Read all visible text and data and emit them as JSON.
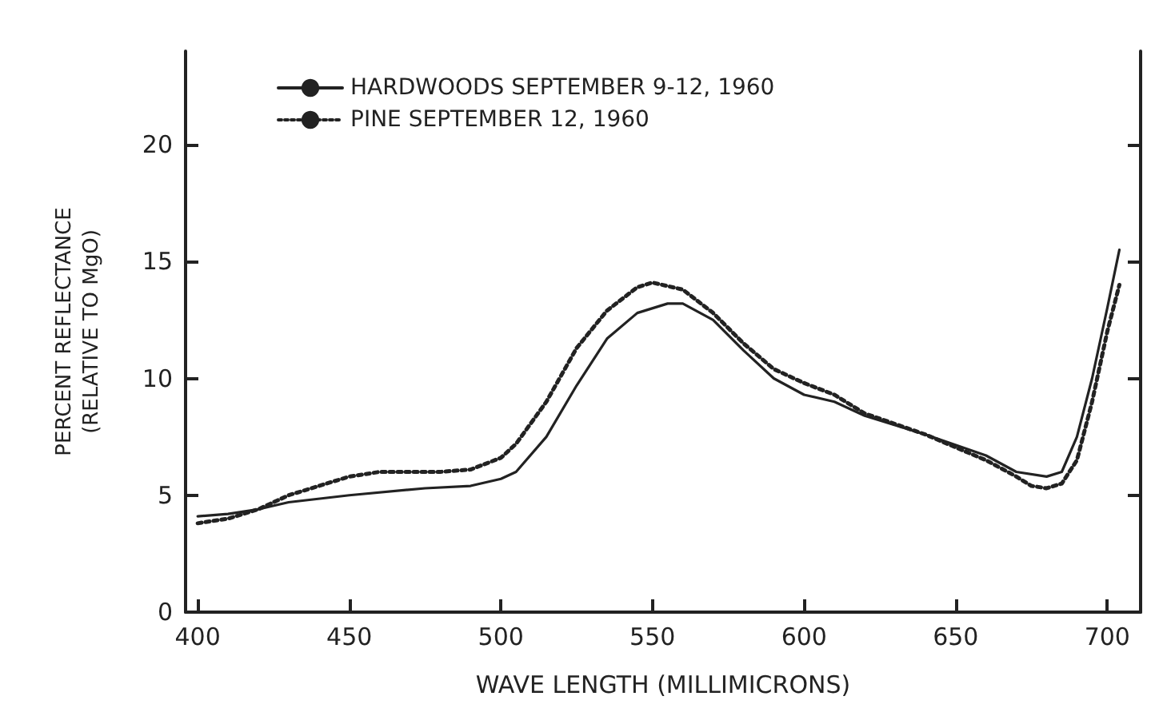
{
  "chart_data": {
    "type": "line",
    "xlabel": "WAVE LENGTH (MILLIMICRONS)",
    "ylabel": "PERCENT REFLECTANCE\n(RELATIVE TO MgO)",
    "xlim": [
      396,
      711
    ],
    "xticks": [
      400,
      450,
      500,
      550,
      600,
      650,
      700
    ],
    "ylim": [
      0,
      24
    ],
    "yticks": [
      0,
      5,
      10,
      15,
      20
    ],
    "grid": false,
    "legend": "top left",
    "series": [
      {
        "name": "HARDWOODS SEPTEMBER 9-12, 1960",
        "color": "#222222",
        "line_style": "solid",
        "x": [
          400,
          410,
          420,
          430,
          450,
          475,
          490,
          500,
          505,
          515,
          525,
          535,
          545,
          555,
          560,
          570,
          580,
          590,
          600,
          610,
          620,
          640,
          660,
          670,
          680,
          685,
          690,
          695,
          700,
          704
        ],
        "values": [
          4.1,
          4.2,
          4.4,
          4.7,
          5.0,
          5.3,
          5.4,
          5.7,
          6.0,
          7.5,
          9.7,
          11.7,
          12.8,
          13.2,
          13.2,
          12.5,
          11.2,
          10.0,
          9.3,
          9.0,
          8.4,
          7.6,
          6.7,
          6.0,
          5.8,
          6.0,
          7.5,
          10,
          13,
          15.5
        ]
      },
      {
        "name": "PINE SEPTEMBER 12, 1960",
        "color": "#222222",
        "line_style": "dotted",
        "x": [
          400,
          410,
          420,
          430,
          440,
          450,
          460,
          470,
          480,
          490,
          500,
          505,
          515,
          525,
          535,
          545,
          550,
          560,
          570,
          580,
          590,
          600,
          610,
          620,
          640,
          660,
          670,
          675,
          680,
          685,
          690,
          695,
          700,
          704
        ],
        "values": [
          3.8,
          4.0,
          4.4,
          5.0,
          5.4,
          5.8,
          6.0,
          6.0,
          6.0,
          6.1,
          6.6,
          7.2,
          9.0,
          11.3,
          12.9,
          13.9,
          14.1,
          13.8,
          12.8,
          11.5,
          10.4,
          9.8,
          9.3,
          8.5,
          7.6,
          6.5,
          5.8,
          5.4,
          5.3,
          5.5,
          6.5,
          9,
          12,
          14
        ]
      }
    ]
  }
}
